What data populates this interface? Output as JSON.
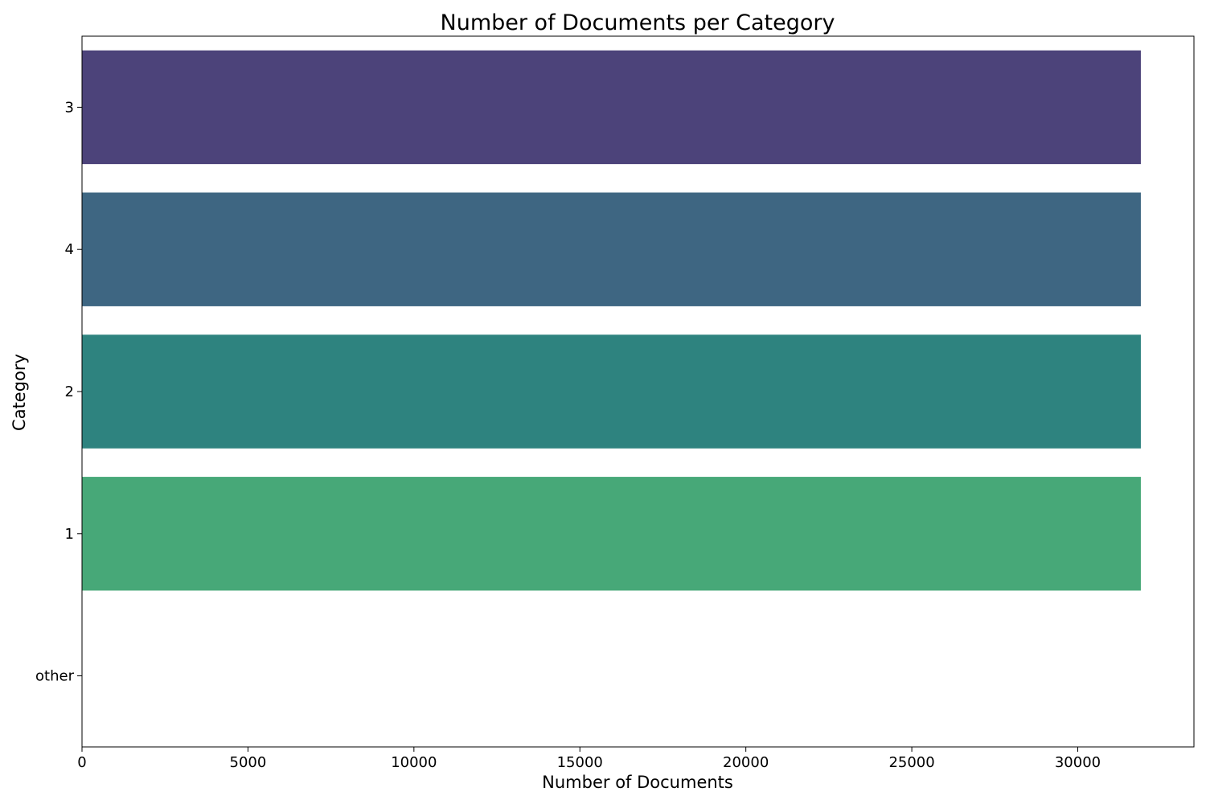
{
  "chart_data": {
    "type": "bar",
    "orientation": "horizontal",
    "title": "Number of Documents per Category",
    "xlabel": "Number of Documents",
    "ylabel": "Category",
    "categories": [
      "3",
      "4",
      "2",
      "1",
      "other"
    ],
    "values": [
      31900,
      31900,
      31900,
      31900,
      0
    ],
    "colors": [
      "#4c437a",
      "#3e6682",
      "#2e837f",
      "#47a878",
      "#6fce62"
    ],
    "xlim": [
      0,
      33500
    ],
    "xticks": [
      0,
      5000,
      10000,
      15000,
      20000,
      25000,
      30000
    ],
    "xtick_labels": [
      "0",
      "5000",
      "10000",
      "15000",
      "20000",
      "25000",
      "30000"
    ],
    "grid": false,
    "legend": "none"
  }
}
